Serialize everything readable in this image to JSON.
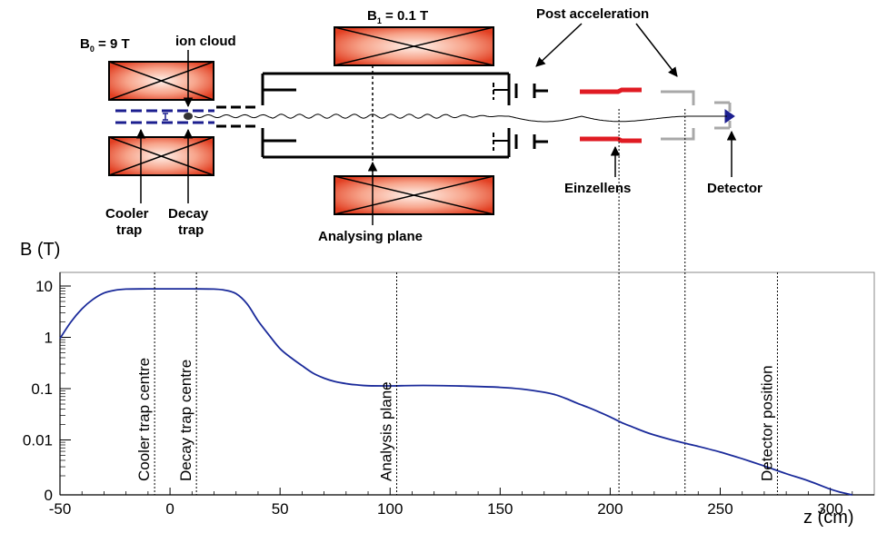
{
  "diagram": {
    "labels": {
      "b0_main": "B",
      "b0_sub": "0",
      "b0_rest": " = 9 T",
      "b1_main": "B",
      "b1_sub": "1",
      "b1_rest": " = 0.1 T",
      "ion_cloud": "ion cloud",
      "post_acceleration": "Post acceleration",
      "cooler_line1": "Cooler",
      "cooler_line2": "trap",
      "decay_line1": "Decay",
      "decay_line2": "trap",
      "analysing_plane": "Analysing plane",
      "einzellens": "Einzellens",
      "detector": "Detector"
    },
    "colors": {
      "magnet_red": "#e8462a",
      "magnet_light": "#fde9e0",
      "trap_blue": "#1c1f8f",
      "lens_red": "#e01b23",
      "post_gray": "#a8a8a8",
      "curve_blue": "#1a2a9a"
    }
  },
  "chart_data": {
    "type": "line",
    "xlabel": "z (cm)",
    "ylabel": "B (T)",
    "xlim": [
      -50,
      320
    ],
    "ylim": [
      0,
      10
    ],
    "xscale": "linear",
    "yscale": "log",
    "xticks": [
      -50,
      0,
      50,
      100,
      150,
      200,
      250,
      300
    ],
    "yticks": [
      {
        "value": 10,
        "label": "10"
      },
      {
        "value": 1,
        "label": "1"
      },
      {
        "value": 0.1,
        "label": "0.1"
      },
      {
        "value": 0.01,
        "label": "0.01"
      },
      {
        "value": 0,
        "label": "0"
      }
    ],
    "grid": false,
    "series": [
      {
        "x": [
          -50,
          -45,
          -40,
          -35,
          -30,
          -25,
          -20,
          -10,
          0,
          10,
          20,
          25,
          30,
          35,
          40,
          45,
          50,
          55,
          60,
          65,
          70,
          75,
          80,
          85,
          90,
          100,
          110,
          120,
          130,
          140,
          150,
          160,
          170,
          175,
          180,
          185,
          190,
          195,
          200,
          205,
          210,
          215,
          220,
          230,
          240,
          250,
          260,
          270,
          280,
          290,
          300,
          305,
          310
        ],
        "y": [
          0.95,
          2.0,
          3.6,
          5.5,
          7.3,
          8.3,
          8.7,
          8.8,
          8.8,
          8.8,
          8.7,
          8.3,
          7.1,
          4.5,
          2.1,
          1.1,
          0.6,
          0.4,
          0.28,
          0.2,
          0.16,
          0.137,
          0.125,
          0.118,
          0.114,
          0.113,
          0.115,
          0.115,
          0.113,
          0.11,
          0.106,
          0.098,
          0.085,
          0.076,
          0.064,
          0.052,
          0.043,
          0.035,
          0.028,
          0.022,
          0.018,
          0.0148,
          0.0125,
          0.0095,
          0.0075,
          0.0058,
          0.0043,
          0.0031,
          0.0022,
          0.0016,
          0.0011,
          0.00095,
          0.0008
        ]
      }
    ],
    "annotations": [
      {
        "x": -7,
        "label": "Cooler trap centre"
      },
      {
        "x": 12,
        "label": "Decay trap centre"
      },
      {
        "x": 103,
        "label": "Analysis   plane"
      },
      {
        "x": 276,
        "label": "Detector position"
      }
    ],
    "lens_guides": [
      204,
      234
    ]
  }
}
